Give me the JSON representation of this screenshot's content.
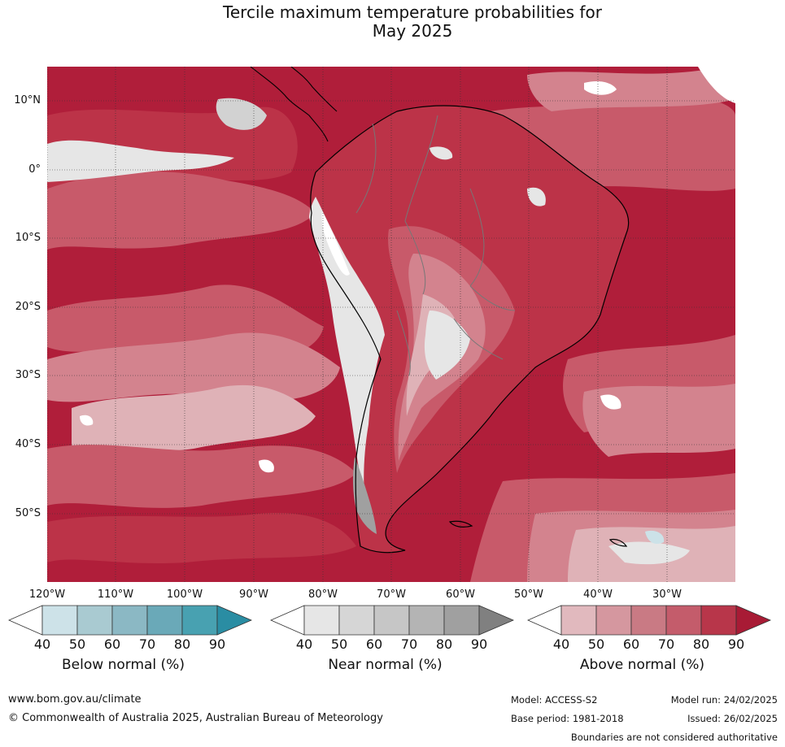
{
  "title": {
    "line1": "Tercile maximum temperature probabilities for",
    "line2": "May 2025"
  },
  "map": {
    "lat_labels": [
      "10°N",
      "0°",
      "10°S",
      "20°S",
      "30°S",
      "40°S",
      "50°S"
    ],
    "lon_labels": [
      "120°W",
      "110°W",
      "100°W",
      "90°W",
      "80°W",
      "70°W",
      "60°W",
      "50°W",
      "40°W",
      "30°W"
    ],
    "colors": {
      "ocean_deep": "#b01e3a",
      "above_80": "#bc3348",
      "above_70": "#c85a6a",
      "above_60": "#d3838e",
      "above_50": "#dfb2b7",
      "near_40": "#e6e6e6",
      "near_50": "#d2d2d2",
      "near_70": "#a0a0a0",
      "below_40": "#cce2e8"
    }
  },
  "legends": [
    {
      "label": "Below normal (%)",
      "ticks": [
        "40",
        "50",
        "60",
        "70",
        "80",
        "90"
      ],
      "colors": [
        "#ffffff",
        "#cde2e8",
        "#a9cad1",
        "#8bb8c4",
        "#6aa9b8",
        "#48a1b1",
        "#2a8da3"
      ]
    },
    {
      "label": "Near normal (%)",
      "ticks": [
        "40",
        "50",
        "60",
        "70",
        "80",
        "90"
      ],
      "colors": [
        "#ffffff",
        "#e6e6e6",
        "#d6d6d6",
        "#c6c6c6",
        "#b4b4b4",
        "#a0a0a0",
        "#808080"
      ]
    },
    {
      "label": "Above normal (%)",
      "ticks": [
        "40",
        "50",
        "60",
        "70",
        "80",
        "90"
      ],
      "colors": [
        "#ffffff",
        "#e1b9be",
        "#d5979f",
        "#c97a84",
        "#c45c6b",
        "#b8364a",
        "#a81b35"
      ]
    }
  ],
  "footer": {
    "website": "www.bom.gov.au/climate",
    "copyright": "© Commonwealth of Australia 2025, Australian Bureau of Meteorology",
    "model": "Model: ACCESS-S2",
    "base_period": "Base period: 1981-2018",
    "model_run": "Model run: 24/02/2025",
    "issued": "Issued: 26/02/2025",
    "disclaimer": "Boundaries are not considered authoritative"
  }
}
